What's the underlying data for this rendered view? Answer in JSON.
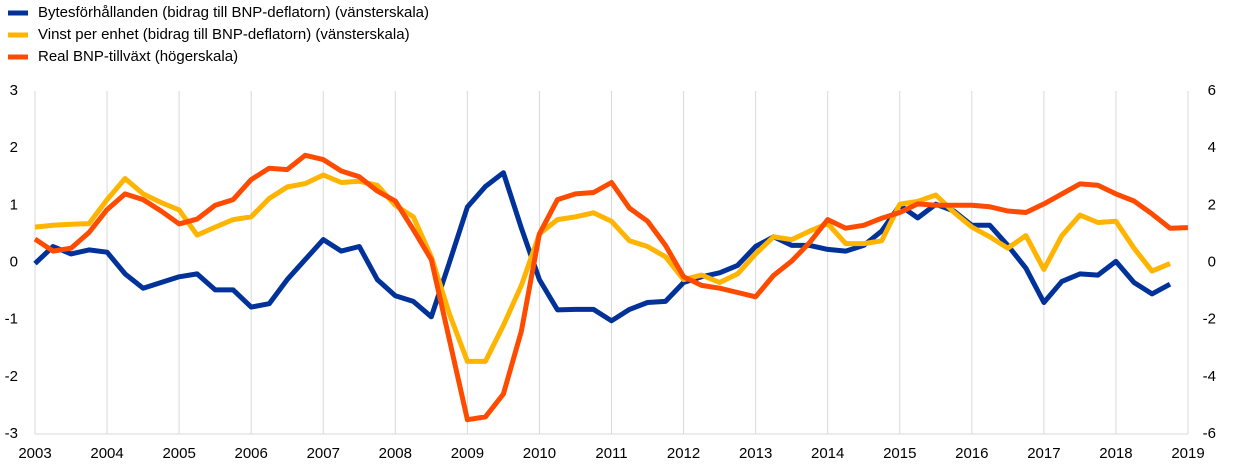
{
  "chart_data": {
    "type": "line",
    "x": [
      2003,
      2003.25,
      2003.5,
      2003.75,
      2004,
      2004.25,
      2004.5,
      2004.75,
      2005,
      2005.25,
      2005.5,
      2005.75,
      2006,
      2006.25,
      2006.5,
      2006.75,
      2007,
      2007.25,
      2007.5,
      2007.75,
      2008,
      2008.25,
      2008.5,
      2008.75,
      2009,
      2009.25,
      2009.5,
      2009.75,
      2010,
      2010.25,
      2010.5,
      2010.75,
      2011,
      2011.25,
      2011.5,
      2011.75,
      2012,
      2012.25,
      2012.5,
      2012.75,
      2013,
      2013.25,
      2013.5,
      2013.75,
      2014,
      2014.25,
      2014.5,
      2014.75,
      2015,
      2015.25,
      2015.5,
      2015.75,
      2016,
      2016.25,
      2016.5,
      2016.75,
      2017,
      2017.25,
      2017.5,
      2017.75,
      2018,
      2018.25,
      2018.5,
      2018.75,
      2019
    ],
    "series": [
      {
        "name": "Bytesförhållanden (bidrag till BNP-deflatorn) (vänsterskala)",
        "color": "#003299",
        "values": [
          -0.02,
          0.28,
          0.15,
          0.22,
          0.18,
          -0.2,
          -0.45,
          -0.35,
          -0.25,
          -0.2,
          -0.48,
          -0.48,
          -0.78,
          -0.72,
          -0.3,
          0.05,
          0.4,
          0.2,
          0.28,
          -0.3,
          -0.58,
          -0.68,
          -0.95,
          0.0,
          0.97,
          1.33,
          1.57,
          0.6,
          -0.3,
          -0.83,
          -0.82,
          -0.82,
          -1.02,
          -0.82,
          -0.7,
          -0.68,
          -0.35,
          -0.25,
          -0.18,
          -0.05,
          0.28,
          0.45,
          0.3,
          0.3,
          0.23,
          0.2,
          0.3,
          0.55,
          1.0,
          0.78,
          1.02,
          0.9,
          0.65,
          0.65,
          0.3,
          -0.1,
          -0.7,
          -0.33,
          -0.2,
          -0.22,
          0.02,
          -0.35,
          -0.55,
          -0.38,
          null
        ]
      },
      {
        "name": "Vinst per enhet (bidrag till BNP-deflatorn) (vänsterskala)",
        "color": "#ffb400",
        "values": [
          0.62,
          0.65,
          0.67,
          0.68,
          1.1,
          1.47,
          1.2,
          1.05,
          0.92,
          0.48,
          0.62,
          0.75,
          0.8,
          1.12,
          1.32,
          1.38,
          1.53,
          1.4,
          1.42,
          1.35,
          1.0,
          0.8,
          0.1,
          -0.9,
          -1.73,
          -1.73,
          -1.1,
          -0.4,
          0.5,
          0.75,
          0.8,
          0.87,
          0.72,
          0.38,
          0.28,
          0.1,
          -0.3,
          -0.22,
          -0.35,
          -0.2,
          0.15,
          0.45,
          0.4,
          0.55,
          0.68,
          0.33,
          0.33,
          0.38,
          1.02,
          1.07,
          1.18,
          0.88,
          0.62,
          0.45,
          0.25,
          0.47,
          -0.12,
          0.47,
          0.83,
          0.7,
          0.72,
          0.25,
          -0.15,
          -0.02,
          null
        ]
      },
      {
        "name": "Real BNP-tillväxt (högerskala)",
        "color": "#ff4b00",
        "axis": "y2",
        "values": [
          0.82,
          0.4,
          0.5,
          1.05,
          1.85,
          2.4,
          2.2,
          1.8,
          1.35,
          1.52,
          2.0,
          2.2,
          2.9,
          3.3,
          3.25,
          3.75,
          3.6,
          3.2,
          3.0,
          2.5,
          2.15,
          1.15,
          0.1,
          -2.7,
          -5.5,
          -5.4,
          -4.6,
          -2.4,
          1.0,
          2.2,
          2.4,
          2.45,
          2.8,
          1.9,
          1.45,
          0.6,
          -0.5,
          -0.8,
          -0.9,
          -1.05,
          -1.2,
          -0.45,
          0.05,
          0.7,
          1.5,
          1.2,
          1.3,
          1.55,
          1.75,
          2.05,
          2.0,
          2.0,
          2.0,
          1.95,
          1.8,
          1.75,
          2.05,
          2.4,
          2.75,
          2.7,
          2.4,
          2.15,
          1.7,
          1.2,
          1.22
        ]
      }
    ],
    "xlim": [
      2003,
      2019
    ],
    "xticks": [
      2003,
      2004,
      2005,
      2006,
      2007,
      2008,
      2009,
      2010,
      2011,
      2012,
      2013,
      2014,
      2015,
      2016,
      2017,
      2018,
      2019
    ],
    "ylim": [
      -3,
      3
    ],
    "yticks": [
      -3,
      -2,
      -1,
      0,
      1,
      2,
      3
    ],
    "y2lim": [
      -6,
      6
    ],
    "y2ticks": [
      -6,
      -4,
      -2,
      0,
      2,
      4,
      6
    ],
    "grid": true
  }
}
